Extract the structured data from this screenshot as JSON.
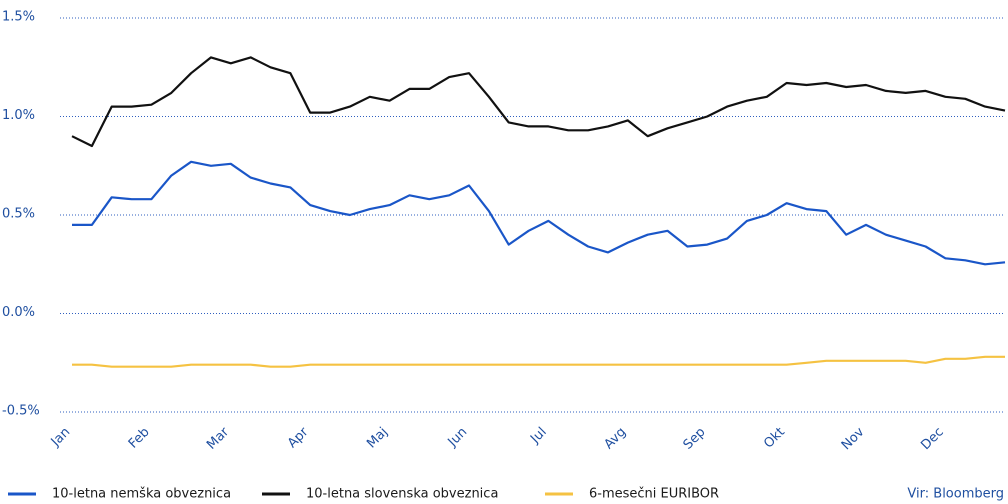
{
  "chart_data": {
    "type": "line",
    "categories": [
      "Jan",
      null,
      null,
      null,
      "Feb",
      null,
      null,
      null,
      "Mar",
      null,
      null,
      null,
      "Apr",
      null,
      null,
      null,
      "Maj",
      null,
      null,
      null,
      "Jun",
      null,
      null,
      null,
      "Jul",
      null,
      null,
      null,
      "Avg",
      null,
      null,
      null,
      "Sep",
      null,
      null,
      null,
      "Okt",
      null,
      null,
      null,
      "Nov",
      null,
      null,
      null,
      "Dec",
      null,
      null,
      null
    ],
    "series": [
      {
        "name": "10-letna nemška obveznica",
        "color": "#1a56c8",
        "values": [
          0.45,
          0.45,
          0.59,
          0.58,
          0.58,
          0.7,
          0.77,
          0.75,
          0.76,
          0.69,
          0.66,
          0.64,
          0.55,
          0.52,
          0.5,
          0.53,
          0.55,
          0.6,
          0.58,
          0.6,
          0.65,
          0.52,
          0.35,
          0.42,
          0.47,
          0.4,
          0.34,
          0.31,
          0.36,
          0.4,
          0.42,
          0.34,
          0.35,
          0.38,
          0.47,
          0.5,
          0.56,
          0.53,
          0.52,
          0.4,
          0.45,
          0.4,
          0.37,
          0.34,
          0.28,
          0.27,
          0.25,
          0.26
        ]
      },
      {
        "name": "10-letna slovenska obveznica",
        "color": "#111111",
        "values": [
          0.9,
          0.85,
          1.05,
          1.05,
          1.06,
          1.12,
          1.22,
          1.3,
          1.27,
          1.3,
          1.25,
          1.22,
          1.02,
          1.02,
          1.05,
          1.1,
          1.08,
          1.14,
          1.14,
          1.2,
          1.22,
          1.1,
          0.97,
          0.95,
          0.95,
          0.93,
          0.93,
          0.95,
          0.98,
          0.9,
          0.94,
          0.97,
          1.0,
          1.05,
          1.08,
          1.1,
          1.17,
          1.16,
          1.17,
          1.15,
          1.16,
          1.13,
          1.12,
          1.13,
          1.1,
          1.09,
          1.05,
          1.03
        ]
      },
      {
        "name": "6-mesečni EURIBOR",
        "color": "#f5c242",
        "values": [
          -0.26,
          -0.26,
          -0.27,
          -0.27,
          -0.27,
          -0.27,
          -0.26,
          -0.26,
          -0.26,
          -0.26,
          -0.27,
          -0.27,
          -0.26,
          -0.26,
          -0.26,
          -0.26,
          -0.26,
          -0.26,
          -0.26,
          -0.26,
          -0.26,
          -0.26,
          -0.26,
          -0.26,
          -0.26,
          -0.26,
          -0.26,
          -0.26,
          -0.26,
          -0.26,
          -0.26,
          -0.26,
          -0.26,
          -0.26,
          -0.26,
          -0.26,
          -0.26,
          -0.25,
          -0.24,
          -0.24,
          -0.24,
          -0.24,
          -0.24,
          -0.25,
          -0.23,
          -0.23,
          -0.22,
          -0.22
        ]
      }
    ],
    "ylim": [
      -0.5,
      1.5
    ],
    "yticks": [
      {
        "value": -0.5,
        "label": "-0.5%"
      },
      {
        "value": 0,
        "label": "0.0%"
      },
      {
        "value": 0.5,
        "label": "0.5%"
      },
      {
        "value": 1,
        "label": "1.0%"
      },
      {
        "value": 1.5,
        "label": "1.5%"
      }
    ],
    "grid": true,
    "legend": "bottom",
    "source": "Vir: Bloomberg"
  }
}
